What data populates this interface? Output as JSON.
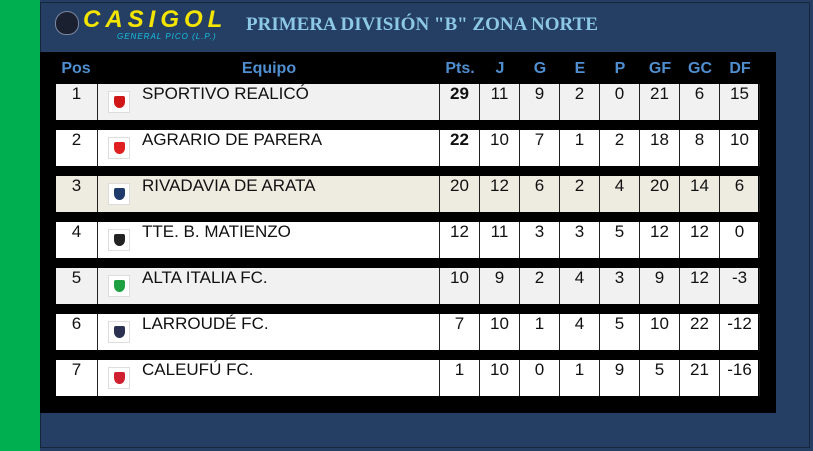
{
  "header": {
    "logo_text": "CASIGOL",
    "logo_sub": "GENERAL PICO (L.P.)",
    "title": "PRIMERA DIVISIÓN \"B\"  ZONA NORTE"
  },
  "columns": [
    "Pos",
    "Equipo",
    "Pts.",
    "J",
    "G",
    "E",
    "P",
    "GF",
    "GC",
    "DF"
  ],
  "rows": [
    {
      "pos": "1",
      "team": "SPORTIVO REALICÓ",
      "crest_color": "#d01818",
      "pts": "29",
      "j": "11",
      "g": "9",
      "e": "2",
      "p": "0",
      "gf": "21",
      "gc": "6",
      "df": "15",
      "pts_bold": true
    },
    {
      "pos": "2",
      "team": "AGRARIO DE PARERA",
      "crest_color": "#e02020",
      "pts": "22",
      "j": "10",
      "g": "7",
      "e": "1",
      "p": "2",
      "gf": "18",
      "gc": "8",
      "df": "10",
      "pts_bold": true
    },
    {
      "pos": "3",
      "team": "RIVADAVIA DE ARATA",
      "crest_color": "#1d3a6a",
      "pts": "20",
      "j": "12",
      "g": "6",
      "e": "2",
      "p": "4",
      "gf": "20",
      "gc": "14",
      "df": "6"
    },
    {
      "pos": "4",
      "team": "TTE. B. MATIENZO",
      "crest_color": "#222222",
      "pts": "12",
      "j": "11",
      "g": "3",
      "e": "3",
      "p": "5",
      "gf": "12",
      "gc": "12",
      "df": "0"
    },
    {
      "pos": "5",
      "team": "ALTA ITALIA FC.",
      "crest_color": "#1fa040",
      "pts": "10",
      "j": "9",
      "g": "2",
      "e": "4",
      "p": "3",
      "gf": "9",
      "gc": "12",
      "df": "-3"
    },
    {
      "pos": "6",
      "team": "LARROUDÉ FC.",
      "crest_color": "#2a3050",
      "pts": "7",
      "j": "10",
      "g": "1",
      "e": "4",
      "p": "5",
      "gf": "10",
      "gc": "22",
      "df": "-12"
    },
    {
      "pos": "7",
      "team": "CALEUFÚ FC.",
      "crest_color": "#d02030",
      "pts": "1",
      "j": "10",
      "g": "0",
      "e": "1",
      "p": "9",
      "gf": "5",
      "gc": "21",
      "df": "-16"
    }
  ]
}
